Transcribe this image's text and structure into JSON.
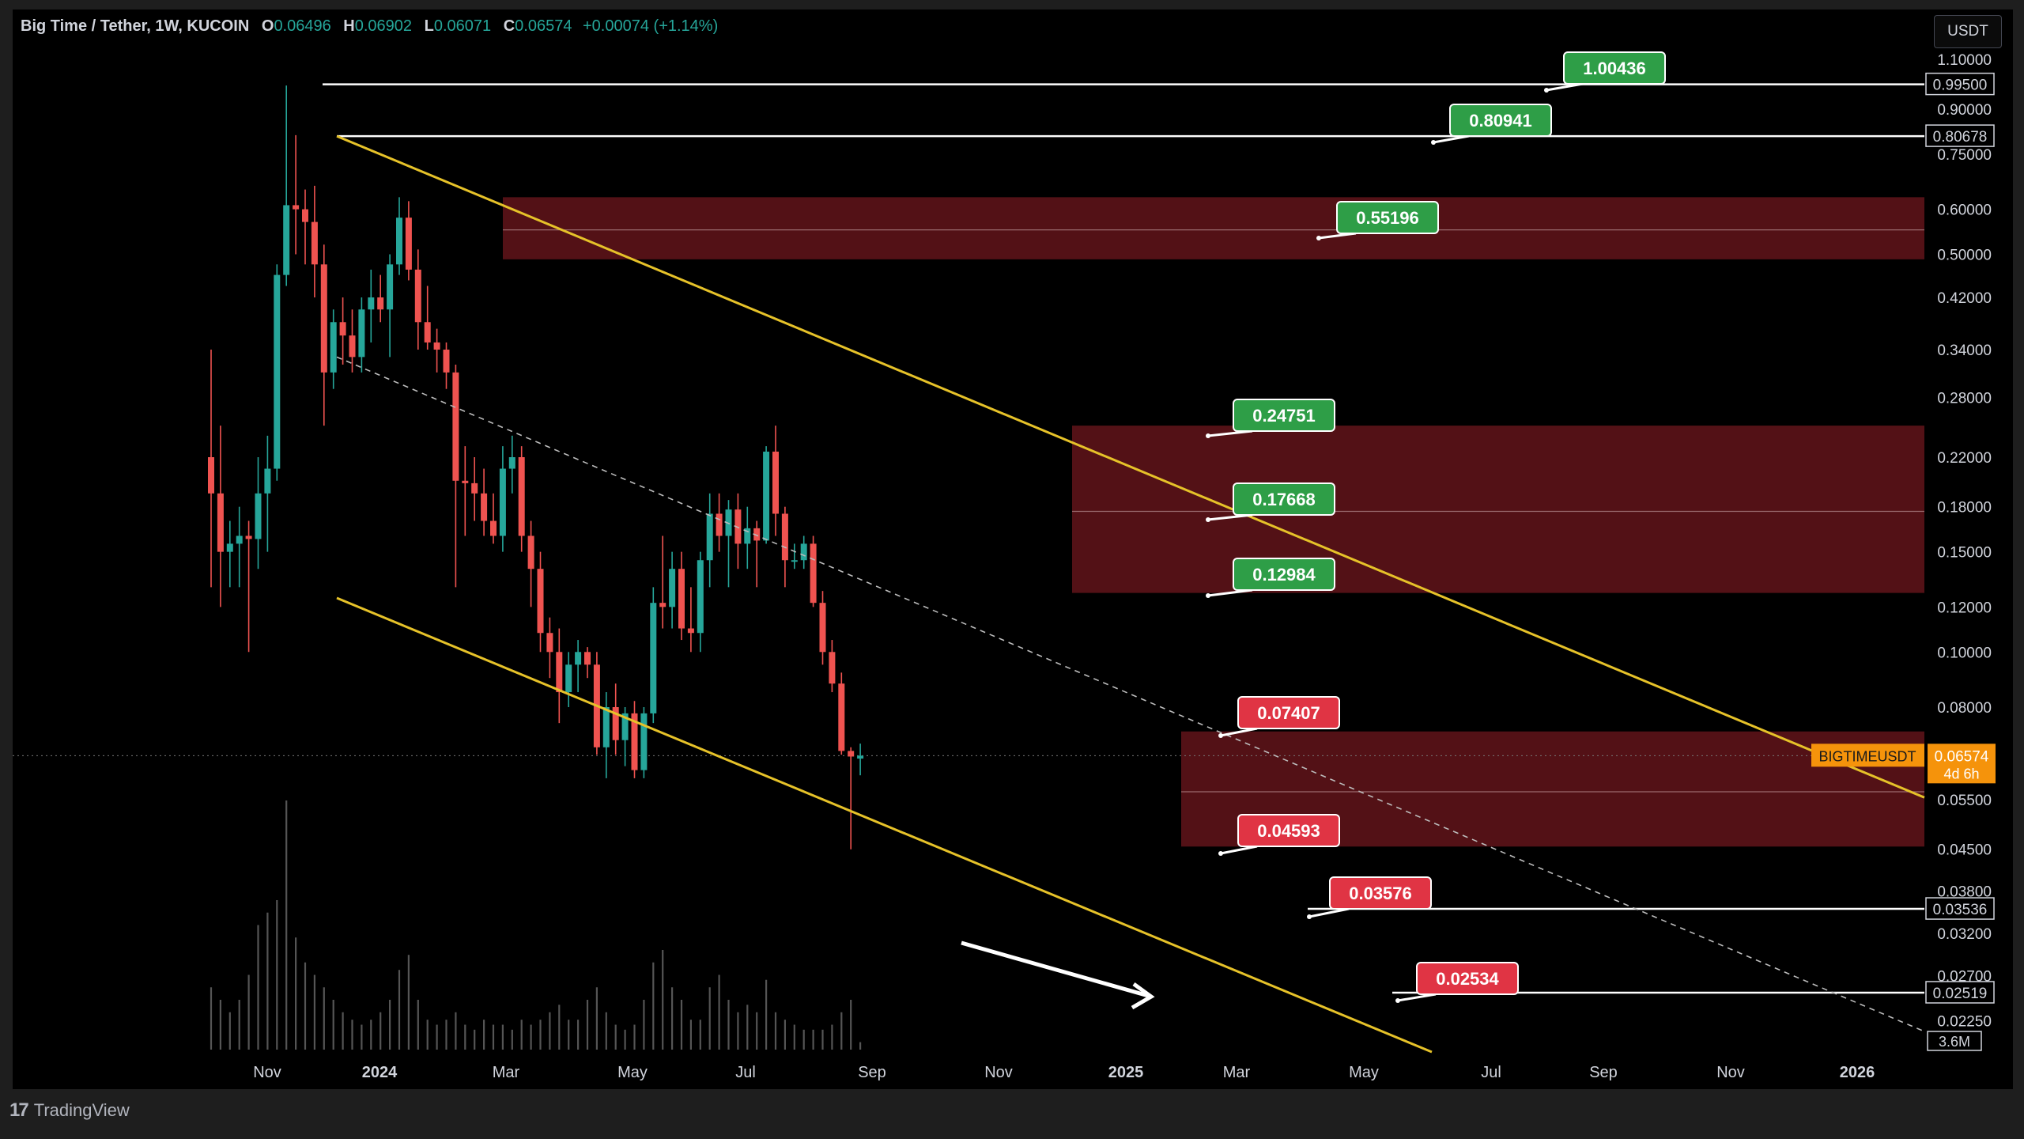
{
  "legend": {
    "symbol": "Big Time / Tether, 1W, KUCOIN",
    "o_label": "O",
    "o": "0.06496",
    "h_label": "H",
    "h": "0.06902",
    "l_label": "L",
    "l": "0.06071",
    "c_label": "C",
    "c": "0.06574",
    "change": "+0.00074 (+1.14%)"
  },
  "currency_button": "USDT",
  "footer": {
    "logo": "17",
    "brand": "TradingView"
  },
  "price_axis": {
    "ticks": [
      "1.10000",
      "0.90000",
      "0.75000",
      "0.60000",
      "0.50000",
      "0.42000",
      "0.34000",
      "0.28000",
      "0.22000",
      "0.18000",
      "0.15000",
      "0.12000",
      "0.10000",
      "0.08000",
      "0.05500",
      "0.04500",
      "0.03800",
      "0.03200",
      "0.02700",
      "0.02250"
    ],
    "boxed": [
      "0.99500",
      "0.80678",
      "0.03536",
      "0.02519"
    ],
    "current_price": "0.06574",
    "countdown": "4d 6h",
    "symbol_tag": "BIGTIMEUSDT",
    "volume_tag": "3.6M"
  },
  "time_axis": [
    "Nov",
    "2024",
    "Mar",
    "May",
    "Jul",
    "Sep",
    "Nov",
    "2025",
    "Mar",
    "May",
    "Jul",
    "Sep",
    "Nov",
    "2026"
  ],
  "annotations": {
    "targets": [
      "1.00436",
      "0.80941",
      "0.55196",
      "0.24751",
      "0.17668",
      "0.12984"
    ],
    "supports": [
      "0.07407",
      "0.04593",
      "0.03576",
      "0.02534"
    ]
  },
  "colors": {
    "up": "#26a69a",
    "down": "#ef5350",
    "channel": "#e6c229",
    "zone": "#5a1218",
    "tag_green": "#2e9e47",
    "tag_red": "#e03444",
    "price_tag": "#f5930b"
  },
  "chart_data": {
    "type": "candlestick",
    "timeframe": "1W",
    "scale": "log",
    "ylim": [
      0.0205,
      1.15
    ],
    "candles": [
      {
        "o": 0.22,
        "h": 0.34,
        "l": 0.13,
        "c": 0.19
      },
      {
        "o": 0.19,
        "h": 0.25,
        "l": 0.12,
        "c": 0.15
      },
      {
        "o": 0.15,
        "h": 0.17,
        "l": 0.13,
        "c": 0.155
      },
      {
        "o": 0.155,
        "h": 0.18,
        "l": 0.13,
        "c": 0.16
      },
      {
        "o": 0.16,
        "h": 0.17,
        "l": 0.1,
        "c": 0.158
      },
      {
        "o": 0.158,
        "h": 0.22,
        "l": 0.14,
        "c": 0.19
      },
      {
        "o": 0.19,
        "h": 0.24,
        "l": 0.15,
        "c": 0.21
      },
      {
        "o": 0.21,
        "h": 0.48,
        "l": 0.2,
        "c": 0.46
      },
      {
        "o": 0.46,
        "h": 0.99,
        "l": 0.44,
        "c": 0.61
      },
      {
        "o": 0.61,
        "h": 0.81,
        "l": 0.5,
        "c": 0.6
      },
      {
        "o": 0.6,
        "h": 0.65,
        "l": 0.48,
        "c": 0.57
      },
      {
        "o": 0.57,
        "h": 0.66,
        "l": 0.42,
        "c": 0.48
      },
      {
        "o": 0.48,
        "h": 0.52,
        "l": 0.25,
        "c": 0.31
      },
      {
        "o": 0.31,
        "h": 0.4,
        "l": 0.29,
        "c": 0.38
      },
      {
        "o": 0.38,
        "h": 0.42,
        "l": 0.32,
        "c": 0.36
      },
      {
        "o": 0.36,
        "h": 0.4,
        "l": 0.31,
        "c": 0.33
      },
      {
        "o": 0.33,
        "h": 0.42,
        "l": 0.31,
        "c": 0.4
      },
      {
        "o": 0.4,
        "h": 0.47,
        "l": 0.35,
        "c": 0.42
      },
      {
        "o": 0.42,
        "h": 0.46,
        "l": 0.38,
        "c": 0.4
      },
      {
        "o": 0.4,
        "h": 0.5,
        "l": 0.33,
        "c": 0.48
      },
      {
        "o": 0.48,
        "h": 0.63,
        "l": 0.46,
        "c": 0.58
      },
      {
        "o": 0.58,
        "h": 0.62,
        "l": 0.45,
        "c": 0.47
      },
      {
        "o": 0.47,
        "h": 0.51,
        "l": 0.34,
        "c": 0.38
      },
      {
        "o": 0.38,
        "h": 0.44,
        "l": 0.34,
        "c": 0.35
      },
      {
        "o": 0.35,
        "h": 0.37,
        "l": 0.31,
        "c": 0.34
      },
      {
        "o": 0.34,
        "h": 0.35,
        "l": 0.29,
        "c": 0.31
      },
      {
        "o": 0.31,
        "h": 0.32,
        "l": 0.13,
        "c": 0.2
      },
      {
        "o": 0.2,
        "h": 0.23,
        "l": 0.16,
        "c": 0.198
      },
      {
        "o": 0.198,
        "h": 0.22,
        "l": 0.17,
        "c": 0.19
      },
      {
        "o": 0.19,
        "h": 0.21,
        "l": 0.16,
        "c": 0.17
      },
      {
        "o": 0.17,
        "h": 0.19,
        "l": 0.155,
        "c": 0.16
      },
      {
        "o": 0.16,
        "h": 0.23,
        "l": 0.15,
        "c": 0.21
      },
      {
        "o": 0.21,
        "h": 0.24,
        "l": 0.19,
        "c": 0.22
      },
      {
        "o": 0.22,
        "h": 0.23,
        "l": 0.15,
        "c": 0.16
      },
      {
        "o": 0.16,
        "h": 0.17,
        "l": 0.12,
        "c": 0.14
      },
      {
        "o": 0.14,
        "h": 0.15,
        "l": 0.1,
        "c": 0.108
      },
      {
        "o": 0.108,
        "h": 0.115,
        "l": 0.09,
        "c": 0.1
      },
      {
        "o": 0.1,
        "h": 0.11,
        "l": 0.075,
        "c": 0.085
      },
      {
        "o": 0.085,
        "h": 0.1,
        "l": 0.08,
        "c": 0.095
      },
      {
        "o": 0.095,
        "h": 0.105,
        "l": 0.085,
        "c": 0.1
      },
      {
        "o": 0.1,
        "h": 0.102,
        "l": 0.09,
        "c": 0.095
      },
      {
        "o": 0.095,
        "h": 0.1,
        "l": 0.066,
        "c": 0.068
      },
      {
        "o": 0.068,
        "h": 0.085,
        "l": 0.06,
        "c": 0.08
      },
      {
        "o": 0.08,
        "h": 0.088,
        "l": 0.066,
        "c": 0.07
      },
      {
        "o": 0.07,
        "h": 0.08,
        "l": 0.063,
        "c": 0.078
      },
      {
        "o": 0.078,
        "h": 0.082,
        "l": 0.06,
        "c": 0.062
      },
      {
        "o": 0.062,
        "h": 0.08,
        "l": 0.06,
        "c": 0.078
      },
      {
        "o": 0.078,
        "h": 0.13,
        "l": 0.075,
        "c": 0.122
      },
      {
        "o": 0.122,
        "h": 0.16,
        "l": 0.11,
        "c": 0.12
      },
      {
        "o": 0.12,
        "h": 0.15,
        "l": 0.11,
        "c": 0.14
      },
      {
        "o": 0.14,
        "h": 0.15,
        "l": 0.105,
        "c": 0.11
      },
      {
        "o": 0.11,
        "h": 0.13,
        "l": 0.1,
        "c": 0.108
      },
      {
        "o": 0.108,
        "h": 0.15,
        "l": 0.1,
        "c": 0.145
      },
      {
        "o": 0.145,
        "h": 0.19,
        "l": 0.13,
        "c": 0.175
      },
      {
        "o": 0.175,
        "h": 0.19,
        "l": 0.15,
        "c": 0.16
      },
      {
        "o": 0.16,
        "h": 0.185,
        "l": 0.13,
        "c": 0.178
      },
      {
        "o": 0.178,
        "h": 0.19,
        "l": 0.14,
        "c": 0.155
      },
      {
        "o": 0.155,
        "h": 0.18,
        "l": 0.14,
        "c": 0.165
      },
      {
        "o": 0.165,
        "h": 0.17,
        "l": 0.13,
        "c": 0.157
      },
      {
        "o": 0.157,
        "h": 0.23,
        "l": 0.155,
        "c": 0.225
      },
      {
        "o": 0.225,
        "h": 0.25,
        "l": 0.16,
        "c": 0.175
      },
      {
        "o": 0.175,
        "h": 0.18,
        "l": 0.13,
        "c": 0.145
      },
      {
        "o": 0.145,
        "h": 0.155,
        "l": 0.14,
        "c": 0.145
      },
      {
        "o": 0.145,
        "h": 0.16,
        "l": 0.14,
        "c": 0.155
      },
      {
        "o": 0.155,
        "h": 0.16,
        "l": 0.12,
        "c": 0.122
      },
      {
        "o": 0.122,
        "h": 0.128,
        "l": 0.095,
        "c": 0.1
      },
      {
        "o": 0.1,
        "h": 0.105,
        "l": 0.085,
        "c": 0.088
      },
      {
        "o": 0.088,
        "h": 0.092,
        "l": 0.066,
        "c": 0.067
      },
      {
        "o": 0.067,
        "h": 0.068,
        "l": 0.045,
        "c": 0.0655
      },
      {
        "o": 0.06496,
        "h": 0.06902,
        "l": 0.06071,
        "c": 0.06574
      }
    ],
    "volume": [
      0.25,
      0.2,
      0.15,
      0.2,
      0.3,
      0.5,
      0.55,
      0.6,
      1.0,
      0.45,
      0.35,
      0.3,
      0.25,
      0.2,
      0.15,
      0.12,
      0.1,
      0.12,
      0.15,
      0.2,
      0.32,
      0.38,
      0.2,
      0.12,
      0.1,
      0.12,
      0.15,
      0.1,
      0.08,
      0.12,
      0.1,
      0.1,
      0.08,
      0.12,
      0.1,
      0.12,
      0.15,
      0.18,
      0.12,
      0.12,
      0.2,
      0.25,
      0.15,
      0.1,
      0.08,
      0.1,
      0.2,
      0.35,
      0.4,
      0.25,
      0.2,
      0.12,
      0.12,
      0.25,
      0.3,
      0.2,
      0.15,
      0.18,
      0.15,
      0.28,
      0.15,
      0.12,
      0.1,
      0.08,
      0.08,
      0.08,
      0.1,
      0.15,
      0.2,
      0.03
    ]
  }
}
